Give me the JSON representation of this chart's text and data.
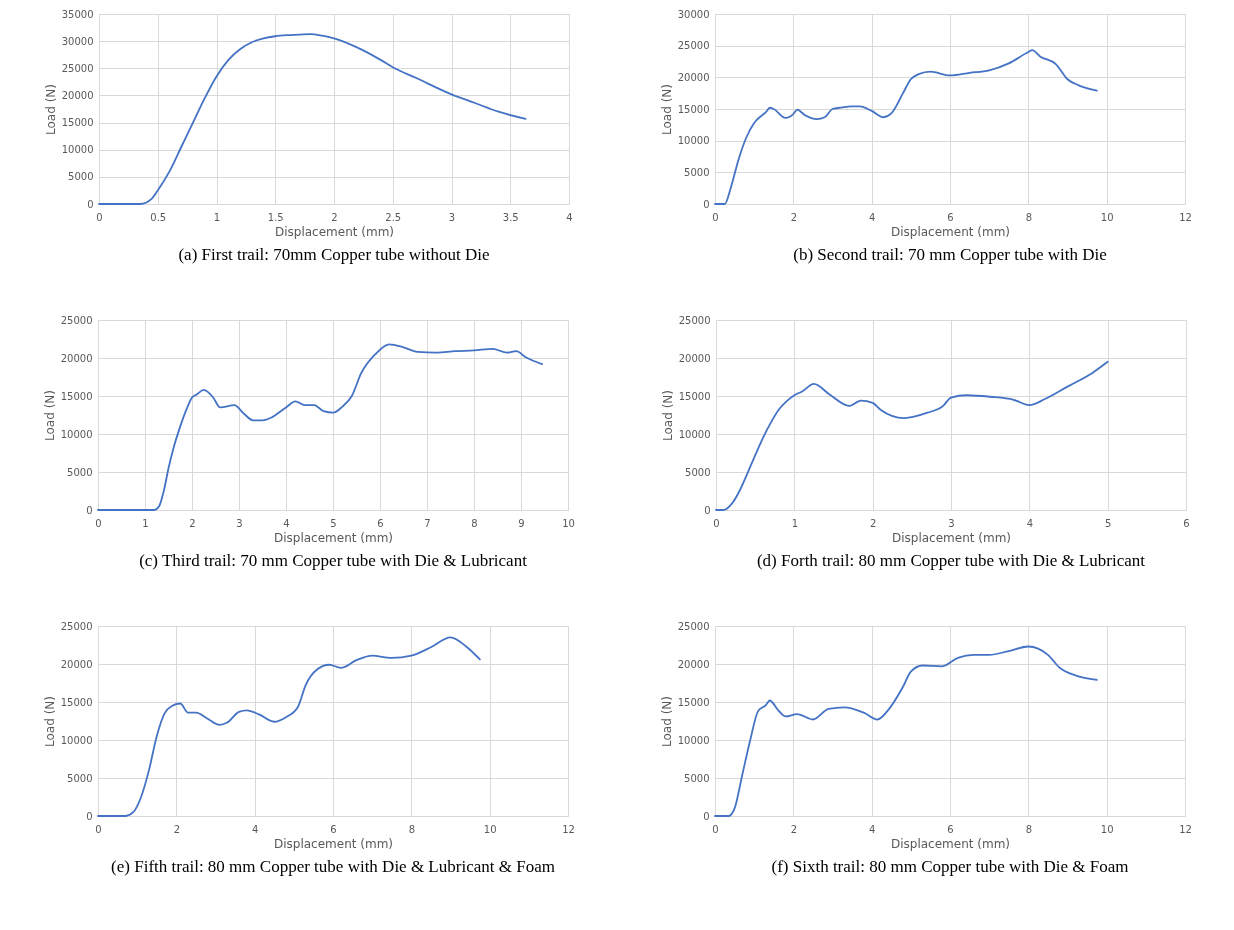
{
  "chart_data": [
    {
      "type": "line",
      "title": "(a)  First trail: 70mm Copper tube without Die",
      "xlabel": "Displacement (mm)",
      "ylabel": "Load (N)",
      "xlim": [
        0,
        4
      ],
      "xticks": [
        0,
        0.5,
        1,
        1.5,
        2,
        2.5,
        3,
        3.5,
        4
      ],
      "ylim": [
        0,
        35000
      ],
      "yticks": [
        0,
        5000,
        10000,
        15000,
        20000,
        25000,
        30000,
        35000
      ],
      "grid": true,
      "series": [
        {
          "color": "#4472c4",
          "x": [
            0,
            0.35,
            0.45,
            0.5,
            0.6,
            0.7,
            0.8,
            0.9,
            1,
            1.1,
            1.2,
            1.3,
            1.4,
            1.5,
            1.6,
            1.7,
            1.8,
            1.9,
            2,
            2.2,
            2.4,
            2.5,
            2.7,
            3,
            3.2,
            3.4,
            3.63
          ],
          "values": [
            0,
            0,
            1000,
            2500,
            6000,
            10500,
            15000,
            19500,
            23500,
            26500,
            28500,
            29800,
            30500,
            30900,
            31100,
            31200,
            31300,
            31000,
            30500,
            28800,
            26500,
            25200,
            23200,
            20200,
            18600,
            17000,
            15700
          ]
        }
      ]
    },
    {
      "type": "line",
      "title": "(b) Second trail: 70 mm Copper tube with Die",
      "xlabel": "Displacement (mm)",
      "ylabel": "Load (N)",
      "xlim": [
        0,
        12
      ],
      "xticks": [
        0,
        2,
        4,
        6,
        8,
        10,
        12
      ],
      "ylim": [
        0,
        30000
      ],
      "yticks": [
        0,
        5000,
        10000,
        15000,
        20000,
        25000,
        30000
      ],
      "grid": true,
      "series": [
        {
          "color": "#4472c4",
          "x": [
            0,
            0.25,
            0.4,
            0.6,
            0.8,
            1,
            1.2,
            1.3,
            1.4,
            1.5,
            1.8,
            2,
            2.1,
            2.3,
            2.6,
            2.8,
            3,
            3.2,
            3.5,
            3.7,
            4,
            4.3,
            4.5,
            4.8,
            5,
            5.2,
            5.5,
            6,
            6.5,
            7,
            7.5,
            8,
            8.1,
            8.3,
            8.7,
            9,
            9.3,
            9.75
          ],
          "values": [
            0,
            0,
            2500,
            7000,
            10500,
            12800,
            14000,
            14500,
            15200,
            15000,
            13600,
            14200,
            14900,
            14000,
            13400,
            13700,
            15000,
            15200,
            15400,
            15400,
            14700,
            13700,
            14300,
            17500,
            19700,
            20500,
            20900,
            20300,
            20700,
            21100,
            22200,
            24000,
            24300,
            23300,
            22100,
            19700,
            18700,
            17900
          ]
        }
      ]
    },
    {
      "type": "line",
      "title": "(c) Third trail: 70 mm Copper tube with Die & Lubricant",
      "xlabel": "Displacement (mm)",
      "ylabel": "Load (N)",
      "xlim": [
        0,
        10
      ],
      "xticks": [
        0,
        1,
        2,
        3,
        4,
        5,
        6,
        7,
        8,
        9,
        10
      ],
      "ylim": [
        0,
        25000
      ],
      "yticks": [
        0,
        5000,
        10000,
        15000,
        20000,
        25000
      ],
      "grid": true,
      "series": [
        {
          "color": "#4472c4",
          "x": [
            0,
            1.2,
            1.3,
            1.4,
            1.5,
            1.6,
            1.75,
            1.9,
            2,
            2.1,
            2.25,
            2.45,
            2.6,
            2.9,
            3.1,
            3.3,
            3.5,
            3.7,
            4,
            4.2,
            4.4,
            4.6,
            4.8,
            5,
            5.2,
            5.4,
            5.6,
            5.9,
            6.2,
            6.5,
            6.8,
            7.2,
            7.6,
            8,
            8.4,
            8.7,
            8.9,
            9.1,
            9.45
          ],
          "values": [
            0,
            0,
            500,
            2500,
            5500,
            8000,
            11000,
            13500,
            14800,
            15200,
            15800,
            14800,
            13500,
            13800,
            12700,
            11800,
            11800,
            12200,
            13500,
            14300,
            13800,
            13800,
            13000,
            12800,
            13600,
            15000,
            18000,
            20500,
            21800,
            21400,
            20800,
            20700,
            20900,
            21000,
            21200,
            20700,
            20900,
            20100,
            19200
          ]
        }
      ]
    },
    {
      "type": "line",
      "title": "(d)  Forth trail: 80 mm Copper tube with Die & Lubricant",
      "xlabel": "Displacement (mm)",
      "ylabel": "Load (N)",
      "xlim": [
        0,
        6
      ],
      "xticks": [
        0,
        1,
        2,
        3,
        4,
        5,
        6
      ],
      "ylim": [
        0,
        25000
      ],
      "yticks": [
        0,
        5000,
        10000,
        15000,
        20000,
        25000
      ],
      "grid": true,
      "series": [
        {
          "color": "#4472c4",
          "x": [
            0,
            0.1,
            0.2,
            0.3,
            0.4,
            0.5,
            0.6,
            0.7,
            0.8,
            0.9,
            1,
            1.1,
            1.25,
            1.45,
            1.7,
            1.85,
            2,
            2.1,
            2.4,
            2.7,
            2.9,
            3,
            3.2,
            3.5,
            3.8,
            4,
            4.2,
            4.5,
            4.8,
            5
          ],
          "values": [
            0,
            0,
            800,
            2500,
            4800,
            7200,
            9500,
            11500,
            13200,
            14300,
            15100,
            15600,
            16600,
            15200,
            13700,
            14400,
            14100,
            13200,
            12100,
            12800,
            13700,
            14800,
            15100,
            14900,
            14500,
            13800,
            14600,
            16300,
            18000,
            19500
          ]
        }
      ]
    },
    {
      "type": "line",
      "title": "(e) Fifth trail: 80 mm Copper tube with Die & Lubricant & Foam",
      "xlabel": "Displacement (mm)",
      "ylabel": "Load (N)",
      "xlim": [
        0,
        12
      ],
      "xticks": [
        0,
        2,
        4,
        6,
        8,
        10,
        12
      ],
      "ylim": [
        0,
        25000
      ],
      "yticks": [
        0,
        5000,
        10000,
        15000,
        20000,
        25000
      ],
      "grid": true,
      "series": [
        {
          "color": "#4472c4",
          "x": [
            0,
            0.7,
            0.9,
            1.1,
            1.3,
            1.5,
            1.7,
            1.9,
            2.1,
            2.3,
            2.5,
            2.8,
            3.1,
            3.3,
            3.6,
            3.8,
            4.1,
            4.5,
            4.8,
            5.1,
            5.3,
            5.6,
            5.9,
            6.2,
            6.6,
            7,
            7.5,
            8,
            8.5,
            9,
            9.4,
            9.75
          ],
          "values": [
            0,
            0,
            500,
            2500,
            6000,
            10500,
            13500,
            14500,
            14800,
            13600,
            13600,
            12800,
            12000,
            12300,
            13700,
            13900,
            13400,
            12400,
            13000,
            14300,
            17200,
            19300,
            19900,
            19500,
            20500,
            21100,
            20800,
            21100,
            22200,
            23500,
            22300,
            20600
          ]
        }
      ]
    },
    {
      "type": "line",
      "title": "(f) Sixth trail: 80 mm Copper tube with Die & Foam",
      "xlabel": "Displacement (mm)",
      "ylabel": "Load (N)",
      "xlim": [
        0,
        12
      ],
      "xticks": [
        0,
        2,
        4,
        6,
        8,
        10,
        12
      ],
      "ylim": [
        0,
        25000
      ],
      "yticks": [
        0,
        5000,
        10000,
        15000,
        20000,
        25000
      ],
      "grid": true,
      "series": [
        {
          "color": "#4472c4",
          "x": [
            0,
            0.35,
            0.5,
            0.7,
            0.9,
            1.1,
            1.3,
            1.4,
            1.6,
            1.8,
            2.1,
            2.5,
            2.9,
            3.3,
            3.8,
            4.15,
            4.4,
            4.8,
            5,
            5.3,
            5.8,
            6.2,
            6.6,
            7,
            7.5,
            8,
            8.5,
            8.8,
            9.2,
            9.75
          ],
          "values": [
            0,
            0,
            1000,
            5500,
            10000,
            13800,
            14600,
            15200,
            14000,
            13100,
            13400,
            12700,
            14100,
            14300,
            13600,
            12700,
            13800,
            17000,
            19000,
            19800,
            19700,
            20800,
            21200,
            21200,
            21700,
            22300,
            21200,
            19500,
            18500,
            17900
          ]
        }
      ]
    }
  ]
}
